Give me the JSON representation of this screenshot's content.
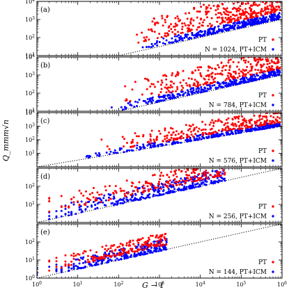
{
  "chart_data": {
    "type": "scatter",
    "xlabel": "G − 1",
    "ylabel": "Q_mmm√n",
    "xscale": "log",
    "yscale": "log",
    "xlim": [
      1,
      1000000
    ],
    "x_tick_labels": [
      "10^0",
      "10^1",
      "10^2",
      "10^3",
      "10^4",
      "10^5",
      "10^6"
    ],
    "colors": {
      "pt": "#ff0000",
      "icm": "#0000ff",
      "line": "#000000"
    },
    "reference_line": {
      "style": "dotted",
      "slope": 0.5,
      "intercept_at_x1": 1
    },
    "panels": [
      {
        "tag": "(a)",
        "legend_pt": "PT",
        "legend_icm": "N = 1024, PT+ICM",
        "ylim": [
          10,
          10000
        ],
        "y_tick_labels": [
          "10^1",
          "10^2",
          "10^3",
          "10^4"
        ],
        "pt": {
          "x_range": [
            200,
            900000
          ],
          "y_base_factor": 3.0,
          "spread": [
            0.0,
            1.3
          ],
          "count": 380
        },
        "icm": {
          "x_range": [
            300,
            900000
          ],
          "y_base_factor": 1.15,
          "spread": [
            0.0,
            0.35
          ],
          "count": 360
        }
      },
      {
        "tag": "(b)",
        "legend_pt": "PT",
        "legend_icm": "N = 784, PT+ICM",
        "ylim": [
          10,
          10000
        ],
        "y_tick_labels": [
          "10^1",
          "10^2",
          "10^3",
          "10^4"
        ],
        "pt": {
          "x_range": [
            100,
            900000
          ],
          "y_base_factor": 2.5,
          "spread": [
            0.0,
            1.1
          ],
          "count": 300
        },
        "icm": {
          "x_range": [
            50,
            900000
          ],
          "y_base_factor": 1.1,
          "spread": [
            0.0,
            0.35
          ],
          "count": 320
        }
      },
      {
        "tag": "(c)",
        "legend_pt": "PT",
        "legend_icm": "N = 576, PT+ICM",
        "ylim": [
          1,
          10000
        ],
        "y_tick_labels": [
          "10^1",
          "10^2",
          "10^3",
          "10^4"
        ],
        "pt": {
          "x_range": [
            30,
            900000
          ],
          "y_base_factor": 2.0,
          "spread": [
            0.0,
            1.0
          ],
          "count": 280
        },
        "icm": {
          "x_range": [
            10,
            900000
          ],
          "y_base_factor": 1.05,
          "spread": [
            0.0,
            0.35
          ],
          "count": 300
        }
      },
      {
        "tag": "(d)",
        "legend_pt": "PT",
        "legend_icm": "N = 256, PT+ICM",
        "ylim": [
          1,
          1000
        ],
        "y_tick_labels": [
          "10^1",
          "10^2"
        ],
        "pt": {
          "x_range": [
            1,
            40000
          ],
          "y_base_factor": 2.2,
          "spread": [
            0.0,
            0.9
          ],
          "count": 230
        },
        "icm": {
          "x_range": [
            1,
            40000
          ],
          "y_base_factor": 1.0,
          "spread": [
            0.0,
            0.7
          ],
          "count": 330
        }
      },
      {
        "tag": "(e)",
        "legend_pt": "PT",
        "legend_icm": "N = 144, PT+ICM",
        "ylim": [
          1,
          1000
        ],
        "y_tick_labels": [
          "10^0",
          "10^1",
          "10^2"
        ],
        "pt": {
          "x_range": [
            1,
            1500
          ],
          "y_base_factor": 1.8,
          "spread": [
            0.0,
            0.7
          ],
          "count": 200
        },
        "icm": {
          "x_range": [
            1,
            1500
          ],
          "y_base_factor": 1.0,
          "spread": [
            0.0,
            0.6
          ],
          "count": 280
        }
      }
    ]
  }
}
